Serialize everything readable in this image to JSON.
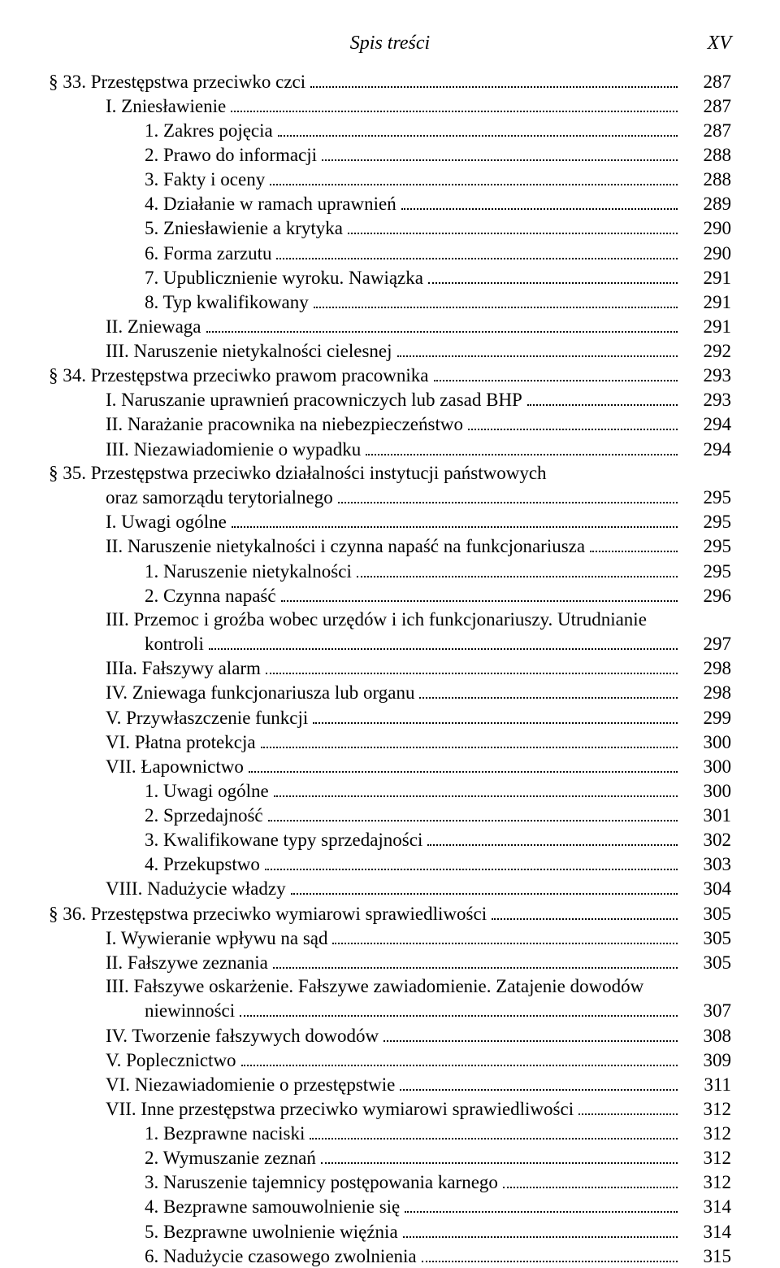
{
  "header": {
    "title": "Spis treści",
    "page_marker": "XV"
  },
  "entries": [
    {
      "indent": 0,
      "text": "§ 33. Przestępstwa przeciwko czci",
      "page": "287"
    },
    {
      "indent": 1,
      "text": "I. Zniesławienie",
      "page": "287"
    },
    {
      "indent": 2,
      "text": "1. Zakres pojęcia",
      "page": "287"
    },
    {
      "indent": 2,
      "text": "2. Prawo do informacji",
      "page": "288"
    },
    {
      "indent": 2,
      "text": "3. Fakty i oceny",
      "page": "288"
    },
    {
      "indent": 2,
      "text": "4. Działanie w ramach uprawnień",
      "page": "289"
    },
    {
      "indent": 2,
      "text": "5. Zniesławienie a krytyka",
      "page": "290"
    },
    {
      "indent": 2,
      "text": "6. Forma zarzutu",
      "page": "290"
    },
    {
      "indent": 2,
      "text": "7. Upublicznienie wyroku. Nawiązka",
      "page": "291"
    },
    {
      "indent": 2,
      "text": "8. Typ kwalifikowany",
      "page": "291"
    },
    {
      "indent": 1,
      "text": "II. Zniewaga",
      "page": "291"
    },
    {
      "indent": 1,
      "text": "III. Naruszenie nietykalności cielesnej",
      "page": "292"
    },
    {
      "indent": 0,
      "text": "§ 34. Przestępstwa przeciwko prawom pracownika",
      "page": "293"
    },
    {
      "indent": 1,
      "text": "I. Naruszanie uprawnień pracowniczych lub zasad BHP",
      "page": "293"
    },
    {
      "indent": 1,
      "text": "II. Narażanie pracownika na niebezpieczeństwo",
      "page": "294"
    },
    {
      "indent": 1,
      "text": "III. Niezawiadomienie o wypadku",
      "page": "294"
    },
    {
      "indent": 0,
      "text": "§ 35. Przestępstwa przeciwko działalności instytucji państwowych",
      "cont": true
    },
    {
      "indent": 1,
      "text": "oraz samorządu terytorialnego",
      "page": "295"
    },
    {
      "indent": 1,
      "text": "I. Uwagi ogólne",
      "page": "295"
    },
    {
      "indent": 1,
      "text": "II. Naruszenie nietykalności i czynna napaść na funkcjonariusza",
      "page": "295"
    },
    {
      "indent": 2,
      "text": "1. Naruszenie nietykalności",
      "page": "295"
    },
    {
      "indent": 2,
      "text": "2. Czynna napaść",
      "page": "296"
    },
    {
      "indent": 1,
      "text": "III. Przemoc i groźba wobec urzędów i ich funkcjonariuszy. Utrudnianie",
      "cont": true
    },
    {
      "indent": 2,
      "text": "kontroli",
      "page": "297"
    },
    {
      "indent": 1,
      "text": "IIIa. Fałszywy alarm",
      "page": "298"
    },
    {
      "indent": 1,
      "text": "IV. Zniewaga funkcjonariusza lub organu",
      "page": "298"
    },
    {
      "indent": 1,
      "text": "V. Przywłaszczenie funkcji",
      "page": "299"
    },
    {
      "indent": 1,
      "text": "VI. Płatna protekcja",
      "page": "300"
    },
    {
      "indent": 1,
      "text": "VII. Łapownictwo",
      "page": "300"
    },
    {
      "indent": 2,
      "text": "1. Uwagi ogólne",
      "page": "300"
    },
    {
      "indent": 2,
      "text": "2. Sprzedajność",
      "page": "301"
    },
    {
      "indent": 2,
      "text": "3. Kwalifikowane typy sprzedajności",
      "page": "302"
    },
    {
      "indent": 2,
      "text": "4. Przekupstwo",
      "page": "303"
    },
    {
      "indent": 1,
      "text": "VIII. Nadużycie władzy",
      "page": "304"
    },
    {
      "indent": 0,
      "text": "§ 36. Przestępstwa przeciwko wymiarowi sprawiedliwości",
      "page": "305"
    },
    {
      "indent": 1,
      "text": "I. Wywieranie wpływu na sąd",
      "page": "305"
    },
    {
      "indent": 1,
      "text": "II. Fałszywe zeznania",
      "page": "305"
    },
    {
      "indent": 1,
      "text": "III. Fałszywe oskarżenie. Fałszywe zawiadomienie. Zatajenie dowodów",
      "cont": true
    },
    {
      "indent": 2,
      "text": "niewinności",
      "page": "307"
    },
    {
      "indent": 1,
      "text": "IV. Tworzenie fałszywych dowodów",
      "page": "308"
    },
    {
      "indent": 1,
      "text": "V. Poplecznictwo",
      "page": "309"
    },
    {
      "indent": 1,
      "text": "VI. Niezawiadomienie o przestępstwie",
      "page": "311"
    },
    {
      "indent": 1,
      "text": "VII. Inne przestępstwa przeciwko wymiarowi sprawiedliwości",
      "page": "312"
    },
    {
      "indent": 2,
      "text": "1. Bezprawne naciski",
      "page": "312"
    },
    {
      "indent": 2,
      "text": "2. Wymuszanie zeznań",
      "page": "312"
    },
    {
      "indent": 2,
      "text": "3. Naruszenie tajemnicy postępowania karnego",
      "page": "312"
    },
    {
      "indent": 2,
      "text": "4. Bezprawne samouwolnienie się",
      "page": "314"
    },
    {
      "indent": 2,
      "text": "5. Bezprawne uwolnienie więźnia",
      "page": "314"
    },
    {
      "indent": 2,
      "text": "6. Nadużycie czasowego zwolnienia",
      "page": "315"
    }
  ]
}
